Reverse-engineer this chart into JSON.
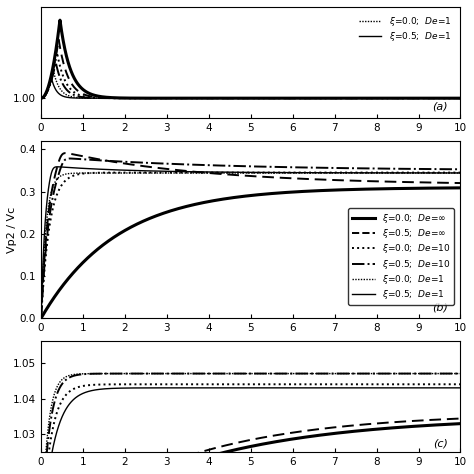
{
  "xlim": [
    0,
    10
  ],
  "xticks": [
    0,
    1,
    2,
    3,
    4,
    5,
    6,
    7,
    8,
    9,
    10
  ],
  "panel_a": {
    "ylim": [
      0.97,
      1.14
    ],
    "yticks": [
      1.0
    ],
    "yticklabels": [
      "1.00"
    ],
    "panel_label": "(a)",
    "legend": [
      {
        "label": "$\\xi$=0.0;  $De$=1",
        "ls": "dotted",
        "lw": 1.0
      },
      {
        "label": "$\\xi$=0.5;  $De$=1",
        "ls": "solid",
        "lw": 1.2
      }
    ]
  },
  "panel_b": {
    "ylim": [
      0.0,
      0.42
    ],
    "yticks": [
      0.0,
      0.1,
      0.2,
      0.3,
      0.4
    ],
    "yticklabels": [
      "0.0",
      "0.1",
      "0.2",
      "0.3",
      "0.4"
    ],
    "ylabel": "Vp2 / Vc",
    "panel_label": "(b)",
    "legend": [
      {
        "label": "$\\xi$=0.0;  $De$=$\\infty$",
        "ls": "solid",
        "lw": 2.5
      },
      {
        "label": "$\\xi$=0.5;  $De$=$\\infty$",
        "ls": "dashed",
        "lw": 1.5
      },
      {
        "label": "$\\xi$=0.0;  $De$=10",
        "ls": "dotted",
        "lw": 1.5
      },
      {
        "label": "$\\xi$=0.5;  $De$=10",
        "ls": "dashdot",
        "lw": 1.5
      },
      {
        "label": "$\\xi$=0.0;  $De$=1",
        "ls": "densely dotted",
        "lw": 1.0
      },
      {
        "label": "$\\xi$=0.5;  $De$=1",
        "ls": "solid",
        "lw": 1.2
      }
    ]
  },
  "panel_c": {
    "ylim": [
      1.025,
      1.056
    ],
    "yticks": [
      1.03,
      1.04,
      1.05
    ],
    "yticklabels": [
      "1.03",
      "1.04",
      "1.05"
    ],
    "panel_label": "(c)"
  }
}
